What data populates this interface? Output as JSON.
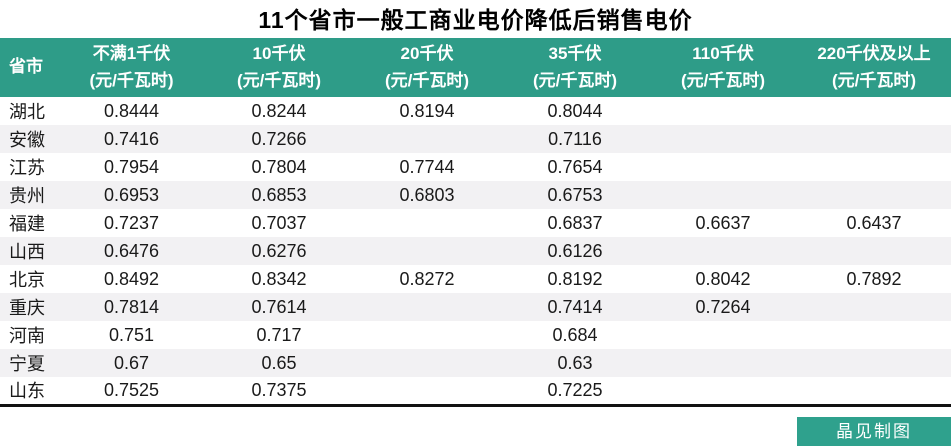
{
  "title": "11个省市一般工商业电价降低后销售电价",
  "credit": "晶见制图",
  "colors": {
    "header_bg": "#2E9C88",
    "credit_bg": "#2FA18D",
    "alt_row": "#F2F1F3",
    "rule": "#111111",
    "text": "#1A1A1A"
  },
  "chart_data": {
    "type": "table",
    "title": "11个省市一般工商业电价降低后销售电价",
    "unit": "元/千瓦时",
    "columns": [
      {
        "label": "省市",
        "unit": ""
      },
      {
        "label": "不满1千伏",
        "unit": "(元/千瓦时)"
      },
      {
        "label": "10千伏",
        "unit": "(元/千瓦时)"
      },
      {
        "label": "20千伏",
        "unit": "(元/千瓦时)"
      },
      {
        "label": "35千伏",
        "unit": "(元/千瓦时)"
      },
      {
        "label": "110千伏",
        "unit": "(元/千瓦时)"
      },
      {
        "label": "220千伏及以上",
        "unit": "(元/千瓦时)"
      }
    ],
    "rows": [
      {
        "province": "湖北",
        "values": [
          "0.8444",
          "0.8244",
          "0.8194",
          "0.8044",
          "",
          ""
        ]
      },
      {
        "province": "安徽",
        "values": [
          "0.7416",
          "0.7266",
          "",
          "0.7116",
          "",
          ""
        ]
      },
      {
        "province": "江苏",
        "values": [
          "0.7954",
          "0.7804",
          "0.7744",
          "0.7654",
          "",
          ""
        ]
      },
      {
        "province": "贵州",
        "values": [
          "0.6953",
          "0.6853",
          "0.6803",
          "0.6753",
          "",
          ""
        ]
      },
      {
        "province": "福建",
        "values": [
          "0.7237",
          "0.7037",
          "",
          "0.6837",
          "0.6637",
          "0.6437"
        ]
      },
      {
        "province": "山西",
        "values": [
          "0.6476",
          "0.6276",
          "",
          "0.6126",
          "",
          ""
        ]
      },
      {
        "province": "北京",
        "values": [
          "0.8492",
          "0.8342",
          "0.8272",
          "0.8192",
          "0.8042",
          "0.7892"
        ]
      },
      {
        "province": "重庆",
        "values": [
          "0.7814",
          "0.7614",
          "",
          "0.7414",
          "0.7264",
          ""
        ]
      },
      {
        "province": "河南",
        "values": [
          "0.751",
          "0.717",
          "",
          "0.684",
          "",
          ""
        ]
      },
      {
        "province": "宁夏",
        "values": [
          "0.67",
          "0.65",
          "",
          "0.63",
          "",
          ""
        ]
      },
      {
        "province": "山东",
        "values": [
          "0.7525",
          "0.7375",
          "",
          "0.7225",
          "",
          ""
        ]
      }
    ]
  }
}
